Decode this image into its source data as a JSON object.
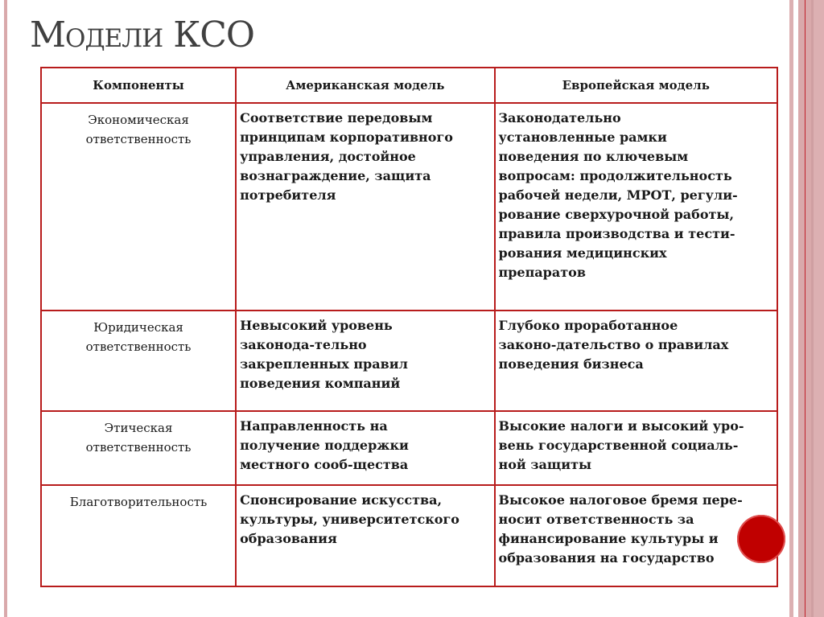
{
  "title": "Модели КСО",
  "colors": {
    "border": "#b81c1c",
    "stripe": "#d9a9ab",
    "accent_circle": "#c00000"
  },
  "table": {
    "headers": [
      "Компоненты",
      "Американская модель",
      "Европейская модель"
    ],
    "rows": [
      {
        "component": [
          "Экономическая",
          "ответственность"
        ],
        "american": [
          "Соответствие передовым",
          "принципам корпоративного",
          "управления, достойное",
          "вознаграждение, защита",
          "потребителя"
        ],
        "european": [
          "Законодательно",
          "установленные рамки",
          "поведения по ключевым",
          "вопросам: продолжительность",
          "рабочей недели, МРОТ, регули-",
          "рование сверхурочной работы,",
          "правила производства и тести-",
          "рования медицинских",
          "препаратов"
        ]
      },
      {
        "component": [
          "Юридическая",
          "ответственность"
        ],
        "american": [
          "Невысокий уровень",
          "законода-тельно",
          "закрепленных правил",
          "поведения компаний"
        ],
        "european": [
          "Глубоко проработанное",
          "законо-дательство о правилах",
          "поведения бизнеса"
        ]
      },
      {
        "component": [
          "Этическая",
          "ответственность"
        ],
        "american": [
          "Направленность на",
          "получение поддержки",
          "местного сооб-щества"
        ],
        "european": [
          "Высокие налоги и высокий уро-",
          "вень государственной социаль-",
          "ной защиты"
        ]
      },
      {
        "component": [
          "Благотворительность"
        ],
        "american": [
          "Спонсирование искусства,",
          "культуры, университетского",
          "образования"
        ],
        "european": [
          "Высокое налоговое бремя пере-",
          "носит ответственность за",
          "финансирование культуры и",
          "образования на государство"
        ]
      }
    ]
  }
}
